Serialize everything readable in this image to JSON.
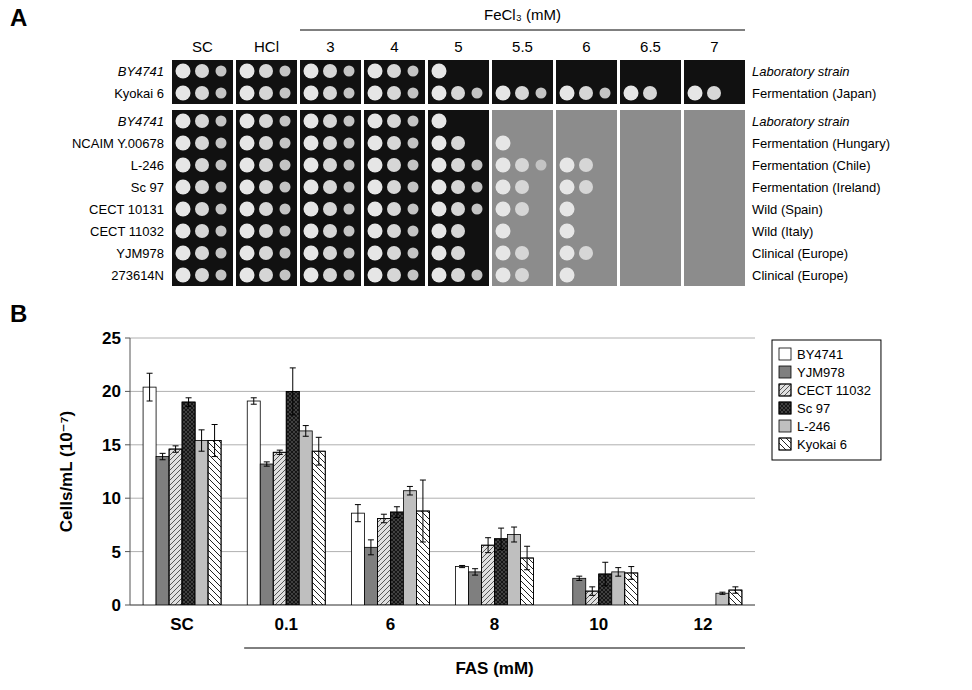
{
  "chart_data": [
    {
      "type": "spot_assay",
      "label": "A",
      "group_title": "FeCl₃ (mM)",
      "columns": [
        "SC",
        "HCl",
        "3",
        "4",
        "5",
        "5.5",
        "6",
        "6.5",
        "7"
      ],
      "blocks": [
        {
          "rows": [
            {
              "strain": "BY4741",
              "origin": "Laboratory strain",
              "spots": [
                3,
                3,
                3,
                3,
                1,
                0,
                0,
                0,
                0
              ]
            },
            {
              "strain": "Kyokai 6",
              "origin": "Fermentation (Japan)",
              "spots": [
                3,
                3,
                3,
                3,
                3,
                3,
                3,
                2,
                2
              ]
            }
          ]
        },
        {
          "rows": [
            {
              "strain": "BY4741",
              "origin": "Laboratory strain",
              "spots": [
                3,
                3,
                3,
                3,
                1,
                0,
                0,
                0,
                0
              ]
            },
            {
              "strain": "NCAIM Y.00678",
              "origin": "Fermentation (Hungary)",
              "spots": [
                3,
                3,
                3,
                3,
                2,
                1,
                0,
                0,
                0
              ]
            },
            {
              "strain": "L-246",
              "origin": "Fermentation (Chile)",
              "spots": [
                3,
                3,
                3,
                3,
                3,
                3,
                2,
                0,
                0
              ]
            },
            {
              "strain": "Sc 97",
              "origin": "Fermentation (Ireland)",
              "spots": [
                3,
                3,
                3,
                3,
                3,
                2,
                2,
                0,
                0
              ]
            },
            {
              "strain": "CECT 10131",
              "origin": "Wild (Spain)",
              "spots": [
                3,
                3,
                3,
                3,
                3,
                2,
                1,
                0,
                0
              ]
            },
            {
              "strain": "CECT 11032",
              "origin": "Wild (Italy)",
              "spots": [
                3,
                3,
                3,
                3,
                2,
                1,
                1,
                0,
                0
              ]
            },
            {
              "strain": "YJM978",
              "origin": "Clinical (Europe)",
              "spots": [
                3,
                3,
                3,
                3,
                2,
                2,
                2,
                0,
                0
              ]
            },
            {
              "strain": "273614N",
              "origin": "Clinical (Europe)",
              "spots": [
                3,
                3,
                3,
                3,
                3,
                2,
                1,
                0,
                0
              ]
            }
          ]
        }
      ]
    },
    {
      "type": "bar",
      "label": "B",
      "y_label": "Cells/mL (10⁻⁷)",
      "x_label": "FAS (mM)",
      "categories": [
        "SC",
        "0.1",
        "6",
        "8",
        "10",
        "12"
      ],
      "ylim": [
        0,
        25
      ],
      "yticks": [
        0,
        5,
        10,
        15,
        20,
        25
      ],
      "grid": true,
      "legend": "right",
      "series": [
        {
          "name": "BY4741",
          "color": "#ffffff",
          "values": [
            20.4,
            19.1,
            8.6,
            3.6,
            0,
            0
          ],
          "errors": [
            1.3,
            0.3,
            0.8,
            0.1,
            0,
            0
          ]
        },
        {
          "name": "YJM978",
          "color": "#7f7f7f",
          "values": [
            13.9,
            13.2,
            5.4,
            3.1,
            2.5,
            0
          ],
          "errors": [
            0.3,
            0.2,
            0.7,
            0.3,
            0.2,
            0
          ]
        },
        {
          "name": "CECT 11032",
          "color": "#e0e0e0",
          "values": [
            14.6,
            14.3,
            8.1,
            5.6,
            1.3,
            0
          ],
          "errors": [
            0.3,
            0.2,
            0.4,
            0.7,
            0.4,
            0
          ]
        },
        {
          "name": "Sc 97",
          "color": "#404040",
          "values": [
            19.0,
            20.0,
            8.7,
            6.2,
            2.9,
            0
          ],
          "errors": [
            0.4,
            2.2,
            0.5,
            1.0,
            1.1,
            0
          ]
        },
        {
          "name": "L-246",
          "color": "#bfbfbf",
          "values": [
            15.4,
            16.3,
            10.7,
            6.6,
            3.1,
            1.1
          ],
          "errors": [
            1.0,
            0.5,
            0.4,
            0.7,
            0.4,
            0.1
          ]
        },
        {
          "name": "Kyokai 6",
          "color": "#ffffff",
          "values": [
            15.4,
            14.4,
            8.8,
            4.4,
            3.0,
            1.4
          ],
          "errors": [
            1.5,
            1.3,
            2.9,
            1.1,
            0.6,
            0.3
          ]
        }
      ]
    }
  ]
}
